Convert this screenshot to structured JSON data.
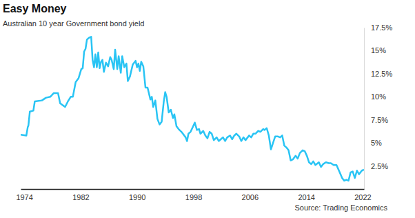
{
  "chart_data": {
    "type": "line",
    "title": "Easy Money",
    "subtitle": "Australian 10 year Government bond yield",
    "source": "Source: Trading Economics",
    "color": "#29c4f4",
    "grid": false,
    "x": [
      1973.5,
      1974.3,
      1974.5,
      1974.6,
      1974.8,
      1975.3,
      1975.5,
      1976.5,
      1977.1,
      1977.7,
      1978.2,
      1978.8,
      1979.1,
      1979.8,
      1980.2,
      1980.6,
      1980.9,
      1981.3,
      1981.7,
      1982.1,
      1982.3,
      1982.5,
      1982.7,
      1982.9,
      1983.2,
      1983.5,
      1983.7,
      1983.9,
      1984.1,
      1984.3,
      1984.5,
      1984.7,
      1984.9,
      1985.1,
      1985.3,
      1985.6,
      1985.9,
      1986.2,
      1986.4,
      1986.7,
      1986.9,
      1987.2,
      1987.4,
      1987.7,
      1987.9,
      1988.2,
      1988.5,
      1988.7,
      1989.0,
      1989.4,
      1989.8,
      1990.0,
      1990.2,
      1990.4,
      1990.6,
      1990.9,
      1991.2,
      1991.5,
      1991.9,
      1992.1,
      1992.3,
      1992.6,
      1992.9,
      1993.2,
      1993.5,
      1993.8,
      1994.0,
      1994.2,
      1994.5,
      1994.8,
      1995.1,
      1995.3,
      1995.6,
      1995.9,
      1996.3,
      1996.6,
      1996.9,
      1997.1,
      1997.3,
      1997.6,
      1997.9,
      1998.2,
      1998.5,
      1998.8,
      1999.0,
      1999.4,
      1999.7,
      2000.0,
      2000.3,
      2000.6,
      2000.9,
      2001.3,
      2001.6,
      2001.9,
      2002.2,
      2002.5,
      2002.8,
      2003.2,
      2003.5,
      2003.8,
      2004.1,
      2004.5,
      2004.8,
      2005.1,
      2005.4,
      2005.9,
      2006.2,
      2006.5,
      2006.8,
      2007.2,
      2007.5,
      2007.9,
      2008.1,
      2008.4,
      2008.7,
      2009.0,
      2009.3,
      2009.6,
      2010.0,
      2010.3,
      2010.6,
      2010.9,
      2011.2,
      2011.5,
      2011.8,
      2012.1,
      2012.5,
      2012.8,
      2013.1,
      2013.5,
      2013.8,
      2014.1,
      2014.4,
      2014.7,
      2015.0,
      2015.3,
      2015.8,
      2016.1,
      2016.4,
      2016.8,
      2017.2,
      2017.5,
      2017.9,
      2018.3,
      2018.7,
      2019.1,
      2019.4,
      2019.7,
      2020.0,
      2020.3,
      2020.6,
      2020.9,
      2021.2,
      2021.5,
      2021.9,
      2022.2
    ],
    "values": [
      5.9,
      5.8,
      6.7,
      6.9,
      8.4,
      8.5,
      9.5,
      9.6,
      9.9,
      10.0,
      10.4,
      10.4,
      9.3,
      8.9,
      9.5,
      10.0,
      10.0,
      11.6,
      12.0,
      13.0,
      13.1,
      14.9,
      15.2,
      16.2,
      16.4,
      16.5,
      14.0,
      13.2,
      14.6,
      13.2,
      14.8,
      13.1,
      13.8,
      14.0,
      12.7,
      13.7,
      13.3,
      14.3,
      14.0,
      13.0,
      15.1,
      13.0,
      14.4,
      12.6,
      14.4,
      13.2,
      13.6,
      11.7,
      12.2,
      13.5,
      13.9,
      13.2,
      13.6,
      12.8,
      13.8,
      13.3,
      11.0,
      11.0,
      9.7,
      10.0,
      8.9,
      9.6,
      7.6,
      7.0,
      7.3,
      9.5,
      10.5,
      10.0,
      8.3,
      8.6,
      7.7,
      8.1,
      6.8,
      6.5,
      6.2,
      5.9,
      5.6,
      5.2,
      6.0,
      6.2,
      6.7,
      7.2,
      6.4,
      6.5,
      6.0,
      6.3,
      5.8,
      5.5,
      6.2,
      6.0,
      5.3,
      5.6,
      5.2,
      5.4,
      5.6,
      5.2,
      5.6,
      5.8,
      5.4,
      5.8,
      6.0,
      5.7,
      5.2,
      5.6,
      5.3,
      5.8,
      5.6,
      6.0,
      6.0,
      6.3,
      6.2,
      6.5,
      6.4,
      6.6,
      5.8,
      4.3,
      5.0,
      5.7,
      5.7,
      5.6,
      5.8,
      4.7,
      4.5,
      4.2,
      3.1,
      3.2,
      3.6,
      3.3,
      3.9,
      4.2,
      4.1,
      3.6,
      2.9,
      2.7,
      3.0,
      2.6,
      2.9,
      2.4,
      2.7,
      2.9,
      2.8,
      2.8,
      2.6,
      2.6,
      1.9,
      1.2,
      0.9,
      1.0,
      0.9,
      1.8,
      1.9,
      1.2,
      2.0,
      1.6,
      2.0,
      2.1
    ],
    "xlim": [
      1973.5,
      2022.2
    ],
    "xticks": [
      1974,
      1982,
      1990,
      1998,
      2006,
      2014,
      2022
    ],
    "ylim": [
      0,
      17.5
    ],
    "yticks": [
      {
        "value": 2.5,
        "label": "2.5%"
      },
      {
        "value": 5,
        "label": "5%"
      },
      {
        "value": 7.5,
        "label": "7.5%"
      },
      {
        "value": 10,
        "label": "10%"
      },
      {
        "value": 12.5,
        "label": "12.5%"
      },
      {
        "value": 15,
        "label": "15%"
      },
      {
        "value": 17.5,
        "label": "17.5%"
      }
    ]
  }
}
